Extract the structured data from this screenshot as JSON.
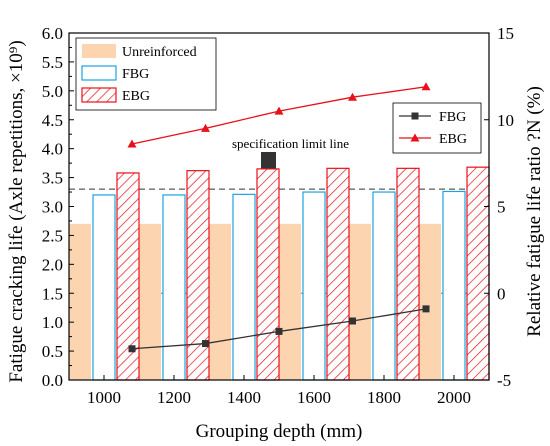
{
  "chart_data": {
    "type": "bar",
    "categories": [
      "1000",
      "1200",
      "1400",
      "1600",
      "1800",
      "2000"
    ],
    "xlabel": "Grouping depth (mm)",
    "ylabel_left": "Fatigue cracking life (Axle repetitions, ×10⁹)",
    "ylabel_right": "Relative fatigue life ratio ?N (%)",
    "ylim_left": [
      0.0,
      6.0
    ],
    "ylim_right": [
      -5,
      15
    ],
    "yticks_left": [
      "0.0",
      "0.5",
      "1.0",
      "1.5",
      "2.0",
      "2.5",
      "3.0",
      "3.5",
      "4.0",
      "4.5",
      "5.0",
      "5.5",
      "6.0"
    ],
    "yticks_right": [
      "-5",
      "0",
      "5",
      "10",
      "15"
    ],
    "bar_series": [
      {
        "name": "Unreinforced",
        "values": [
          2.7,
          2.7,
          2.7,
          2.7,
          2.7,
          2.7
        ],
        "color": "#fcd5b0"
      },
      {
        "name": "FBG",
        "values": [
          3.2,
          3.2,
          3.21,
          3.25,
          3.25,
          3.26
        ],
        "color": "#1aa3e0"
      },
      {
        "name": "EBG",
        "values": [
          3.58,
          3.62,
          3.65,
          3.66,
          3.66,
          3.68
        ],
        "color": "#e8101a"
      }
    ],
    "line_series": [
      {
        "name": "FBG",
        "axis": "right",
        "x": [
          1080,
          1290,
          1500,
          1710,
          1920
        ],
        "values": [
          -3.2,
          -2.9,
          -2.2,
          -1.6,
          -0.9
        ],
        "color": "#333333",
        "marker": "square"
      },
      {
        "name": "EBG",
        "axis": "right",
        "x": [
          1080,
          1290,
          1500,
          1710,
          1920
        ],
        "values": [
          8.6,
          9.5,
          10.5,
          11.3,
          11.9
        ],
        "color": "#e8101a",
        "marker": "triangle"
      }
    ],
    "reference_lines": [
      {
        "axis": "left",
        "value": 3.3,
        "style": "dashed",
        "label": "specification limit line"
      },
      {
        "axis": "right",
        "value": 0,
        "style": "dotted",
        "label": ""
      }
    ],
    "legend_bars_placement": "top-left",
    "legend_lines_placement": "right"
  }
}
